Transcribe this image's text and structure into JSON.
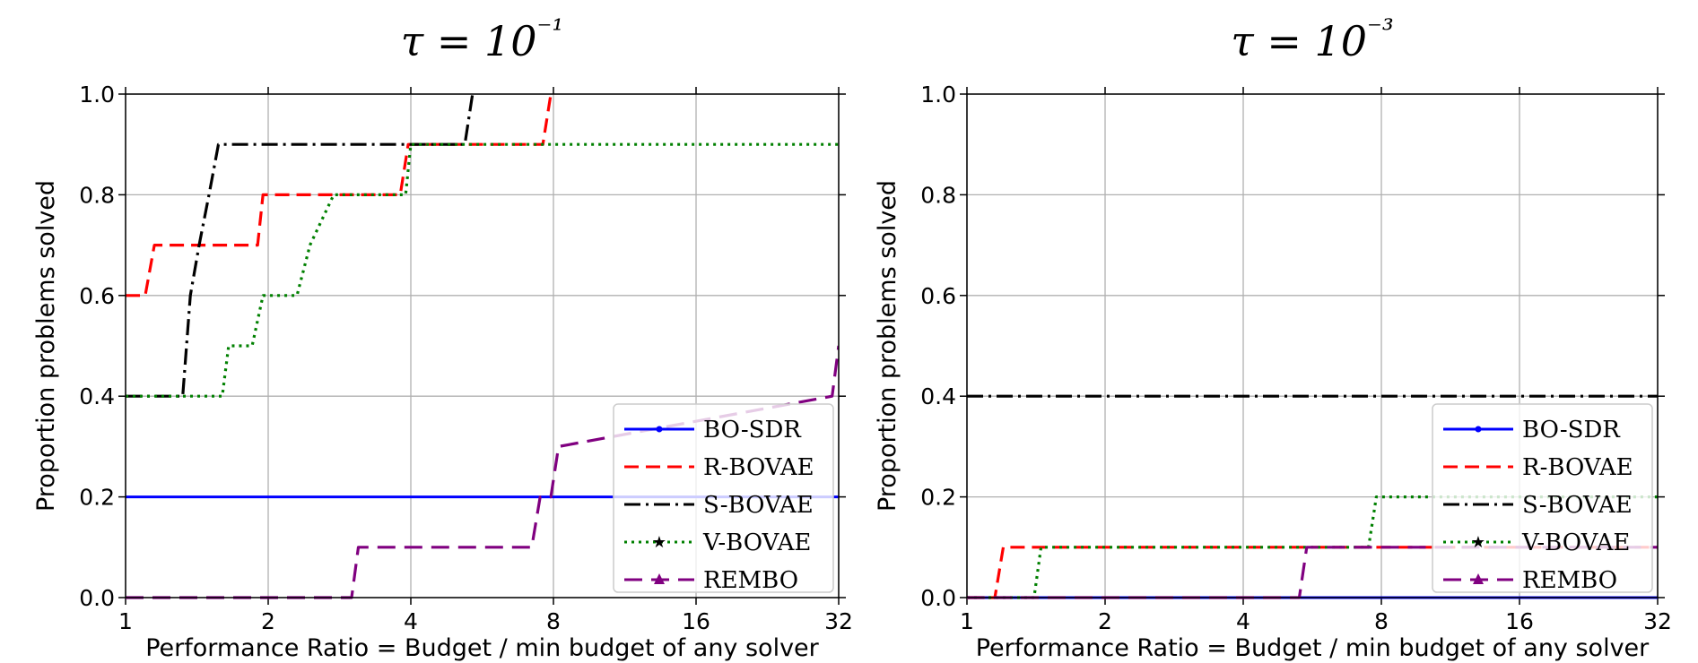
{
  "chart_data": [
    {
      "type": "line",
      "title": "τ = 10⁻¹",
      "xlabel": "Performance Ratio = Budget / min budget of any solver",
      "ylabel": "Proportion problems solved",
      "xscale": "log2",
      "xlim": [
        1,
        32
      ],
      "ylim": [
        0,
        1
      ],
      "xticks": [
        1,
        2,
        4,
        8,
        16,
        32
      ],
      "xtick_labels": [
        "1",
        "2",
        "4",
        "8",
        "16",
        "32"
      ],
      "yticks": [
        0,
        0.2,
        0.4,
        0.6,
        0.8,
        1.0
      ],
      "ytick_labels": [
        "0.0",
        "0.2",
        "0.4",
        "0.6",
        "0.8",
        "1.0"
      ],
      "grid": true,
      "legend": "lower-right",
      "series": [
        {
          "name": "BO-SDR",
          "color": "#0000ff",
          "dash": "solid",
          "marker": "point",
          "x": [
            1,
            32
          ],
          "y": [
            0.2,
            0.2
          ]
        },
        {
          "name": "R-BOVAE",
          "color": "#ff0000",
          "dash": "dashed",
          "marker": "none",
          "x": [
            1,
            1.1,
            1.15,
            1.9,
            1.95,
            3.8,
            3.95,
            7.6,
            7.9
          ],
          "y": [
            0.6,
            0.6,
            0.7,
            0.7,
            0.8,
            0.8,
            0.9,
            0.9,
            1.0
          ]
        },
        {
          "name": "S-BOVAE",
          "color": "#000000",
          "dash": "dashdot",
          "marker": "none",
          "x": [
            1,
            1.32,
            1.37,
            1.43,
            1.5,
            1.57,
            5.2,
            5.4
          ],
          "y": [
            0.4,
            0.4,
            0.6,
            0.7,
            0.8,
            0.9,
            0.9,
            1.0
          ]
        },
        {
          "name": "V-BOVAE",
          "color": "#008000",
          "dash": "dotted",
          "marker": "star",
          "x": [
            1,
            1.6,
            1.65,
            1.85,
            1.95,
            2.3,
            2.45,
            2.75,
            2.95,
            3.9,
            4.0,
            32
          ],
          "y": [
            0.4,
            0.4,
            0.5,
            0.5,
            0.6,
            0.6,
            0.7,
            0.8,
            0.8,
            0.8,
            0.9,
            0.9
          ]
        },
        {
          "name": "REMBO",
          "color": "#800080",
          "dash": "longdash",
          "marker": "triangle",
          "x": [
            1,
            3.0,
            3.1,
            7.2,
            7.5,
            7.9,
            8.2,
            31.0,
            32
          ],
          "y": [
            0.0,
            0.0,
            0.1,
            0.1,
            0.2,
            0.2,
            0.3,
            0.4,
            0.5
          ]
        }
      ]
    },
    {
      "type": "line",
      "title": "τ = 10⁻³",
      "xlabel": "Performance Ratio = Budget / min budget of any solver",
      "ylabel": "Proportion problems solved",
      "xscale": "log2",
      "xlim": [
        1,
        32
      ],
      "ylim": [
        0,
        1
      ],
      "xticks": [
        1,
        2,
        4,
        8,
        16,
        32
      ],
      "xtick_labels": [
        "1",
        "2",
        "4",
        "8",
        "16",
        "32"
      ],
      "yticks": [
        0,
        0.2,
        0.4,
        0.6,
        0.8,
        1.0
      ],
      "ytick_labels": [
        "0.0",
        "0.2",
        "0.4",
        "0.6",
        "0.8",
        "1.0"
      ],
      "grid": true,
      "legend": "lower-right",
      "series": [
        {
          "name": "BO-SDR",
          "color": "#0000ff",
          "dash": "solid",
          "marker": "point",
          "x": [
            1,
            32
          ],
          "y": [
            0.0,
            0.0
          ]
        },
        {
          "name": "R-BOVAE",
          "color": "#ff0000",
          "dash": "dashed",
          "marker": "none",
          "x": [
            1,
            1.15,
            1.2,
            32
          ],
          "y": [
            0.0,
            0.0,
            0.1,
            0.1
          ]
        },
        {
          "name": "S-BOVAE",
          "color": "#000000",
          "dash": "dashdot",
          "marker": "none",
          "x": [
            1,
            32
          ],
          "y": [
            0.4,
            0.4
          ]
        },
        {
          "name": "V-BOVAE",
          "color": "#008000",
          "dash": "dotted",
          "marker": "star",
          "x": [
            1,
            1.4,
            1.45,
            7.5,
            7.8,
            32
          ],
          "y": [
            0.0,
            0.0,
            0.1,
            0.1,
            0.2,
            0.2
          ]
        },
        {
          "name": "REMBO",
          "color": "#800080",
          "dash": "longdash",
          "marker": "triangle",
          "x": [
            1,
            5.3,
            5.5,
            32
          ],
          "y": [
            0.0,
            0.0,
            0.1,
            0.1
          ]
        }
      ]
    }
  ]
}
